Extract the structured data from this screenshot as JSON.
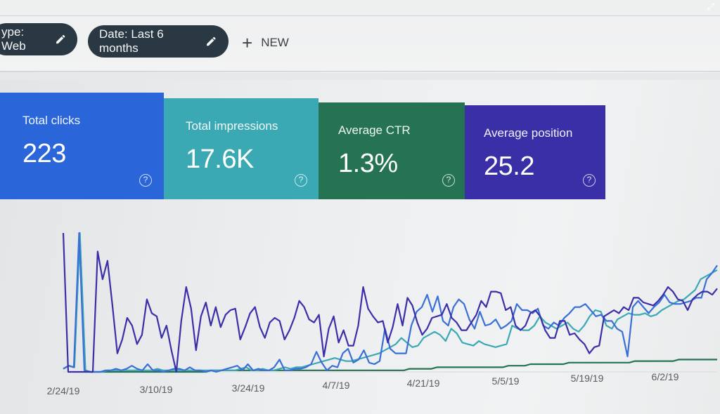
{
  "filters": {
    "type_chip": "ype: Web",
    "date_chip": "Date: Last 6 months",
    "new_label": "NEW"
  },
  "cards": [
    {
      "label": "Total clicks",
      "value": "223",
      "color": "#2a66d9"
    },
    {
      "label": "Total impressions",
      "value": "17.6K",
      "color": "#3aa9b4"
    },
    {
      "label": "Average CTR",
      "value": "1.3%",
      "color": "#257353"
    },
    {
      "label": "Average position",
      "value": "25.2",
      "color": "#3b2fa8"
    }
  ],
  "chart_data": {
    "type": "line",
    "x_tick_labels": [
      "2/24/19",
      "3/10/19",
      "3/24/19",
      "4/7/19",
      "4/21/19",
      "5/5/19",
      "5/19/19",
      "6/2/19"
    ],
    "series": [
      {
        "color": "#3b2fa8",
        "values": [
          90,
          0,
          0,
          0,
          0,
          0,
          0,
          78,
          60,
          72,
          43,
          12,
          21,
          35,
          30,
          18,
          24,
          47,
          38,
          36,
          22,
          30,
          14,
          0,
          33,
          55,
          41,
          14,
          36,
          45,
          30,
          42,
          29,
          37,
          40,
          41,
          21,
          29,
          38,
          42,
          29,
          22,
          32,
          35,
          33,
          21,
          27,
          35,
          46,
          42,
          34,
          32,
          37,
          10,
          28,
          36,
          19,
          27,
          17,
          17,
          30,
          55,
          41,
          36,
          32,
          33,
          19,
          29,
          44,
          30,
          48,
          43,
          32,
          24,
          28,
          35,
          36,
          37,
          44,
          35,
          32,
          27,
          27,
          32,
          37,
          46,
          42,
          52,
          52,
          51,
          40,
          42,
          30,
          27,
          30,
          38,
          40,
          36,
          27,
          22,
          22,
          33,
          33,
          24,
          25,
          21,
          18,
          12,
          16,
          17,
          36,
          38,
          40,
          38,
          42,
          40,
          48,
          48,
          45,
          44,
          43,
          46,
          50,
          55,
          52,
          47,
          46,
          40,
          47,
          50,
          52,
          52,
          50,
          54
        ]
      },
      {
        "color": "#3a6fd8",
        "values": [
          2,
          4,
          3,
          90,
          1,
          0,
          0,
          0,
          1,
          1,
          2,
          1,
          2,
          4,
          2,
          1,
          5,
          1,
          1,
          0,
          1,
          2,
          2,
          1,
          3,
          1,
          1,
          0,
          1,
          0,
          1,
          2,
          3,
          4,
          1,
          5,
          1,
          2,
          1,
          1,
          3,
          8,
          1,
          1,
          2,
          2,
          3,
          5,
          13,
          6,
          1,
          4,
          3,
          12,
          15,
          6,
          8,
          14,
          6,
          5,
          7,
          28,
          15,
          12,
          12,
          12,
          30,
          39,
          42,
          50,
          39,
          49,
          33,
          30,
          42,
          47,
          44,
          34,
          28,
          39,
          30,
          31,
          34,
          28,
          30,
          33,
          44,
          40,
          40,
          38,
          41,
          30,
          28,
          32,
          30,
          35,
          38,
          42,
          42,
          44,
          40,
          36,
          37,
          33,
          33,
          28,
          26,
          10,
          42,
          46,
          42,
          38,
          42,
          45,
          50,
          45,
          44,
          44,
          45,
          46,
          48,
          48,
          60,
          64,
          69
        ]
      },
      {
        "color": "#3aa9b4",
        "values": [
          2,
          4,
          3,
          90,
          1,
          0,
          0,
          0,
          1,
          1,
          1,
          1,
          1,
          1,
          1,
          1,
          1,
          2,
          1,
          1,
          1,
          1,
          1,
          1,
          1,
          1,
          1,
          1,
          1,
          1,
          1,
          1,
          2,
          3,
          1,
          1,
          2,
          1,
          1,
          2,
          3,
          2,
          3,
          3,
          4,
          5,
          6,
          7,
          8,
          9,
          8,
          7,
          7,
          8,
          9,
          10,
          11,
          12,
          14,
          16,
          18,
          22,
          19,
          16,
          17,
          22,
          24,
          26,
          24,
          20,
          28,
          25,
          19,
          18,
          17,
          20,
          18,
          17,
          16,
          17,
          18,
          30,
          28,
          27,
          27,
          30,
          36,
          32,
          30,
          28,
          30,
          32,
          28,
          26,
          30,
          36,
          40,
          39,
          30,
          28,
          34,
          36,
          38,
          37,
          37,
          38,
          36,
          37,
          40,
          42,
          44,
          46,
          47,
          50,
          53,
          60,
          62,
          64,
          66
        ]
      },
      {
        "color": "#257353",
        "values": [
          2,
          4,
          3,
          90,
          1,
          0,
          0,
          0,
          0,
          0,
          0,
          0,
          0,
          0,
          0,
          0,
          0,
          0,
          0,
          0,
          0,
          0,
          0,
          0,
          0,
          0,
          0,
          1,
          1,
          1,
          1,
          1,
          1,
          1,
          1,
          1,
          1,
          1,
          1,
          1,
          1,
          1,
          1,
          1,
          1,
          1,
          1,
          1,
          1,
          1,
          1,
          1,
          1,
          1,
          1,
          1,
          1,
          1,
          1,
          1,
          1,
          1,
          1,
          2,
          2,
          2,
          2,
          2,
          3,
          3,
          3,
          3,
          3,
          3,
          3,
          3,
          3,
          3,
          3,
          3,
          3,
          4,
          4,
          4,
          4,
          5,
          5,
          5,
          5,
          5,
          5,
          5,
          6,
          6,
          6,
          6,
          6,
          6,
          6,
          6,
          6,
          6,
          6,
          6,
          7,
          7,
          7,
          7,
          7,
          7,
          7,
          7,
          8,
          8,
          8,
          8,
          8,
          8,
          8,
          8
        ]
      }
    ]
  }
}
